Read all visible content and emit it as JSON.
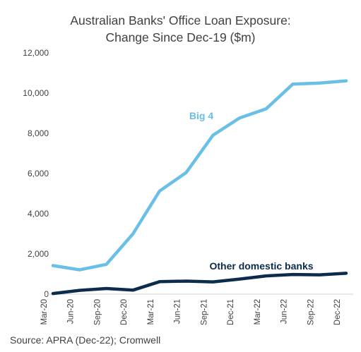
{
  "title": {
    "line1": "Australian Banks' Office Loan Exposure:",
    "line2": "Change Since Dec-19 ($m)"
  },
  "source": "Source: APRA (Dec-22); Cromwell",
  "chart_data": {
    "type": "line",
    "categories": [
      "Mar-20",
      "Jun-20",
      "Sep-20",
      "Dec-20",
      "Mar-21",
      "Jun-21",
      "Sep-21",
      "Dec-21",
      "Mar-22",
      "Jun-22",
      "Sep-22",
      "Dec-22"
    ],
    "series": [
      {
        "name": "Big 4",
        "color": "#69bfe6",
        "values": [
          1420,
          1210,
          1480,
          3000,
          5130,
          6050,
          7900,
          8760,
          9220,
          10450,
          10500,
          10610
        ]
      },
      {
        "name": "Other domestic banks",
        "color": "#0b2c4a",
        "values": [
          30,
          190,
          280,
          200,
          620,
          650,
          610,
          750,
          910,
          980,
          960,
          1040
        ]
      }
    ],
    "y_ticks": [
      "0",
      "2,000",
      "4,000",
      "6,000",
      "8,000",
      "10,000",
      "12,000"
    ],
    "ylim": [
      0,
      12000
    ],
    "xlabel": "",
    "ylabel": "",
    "grid": false,
    "legend": "inline labels"
  }
}
